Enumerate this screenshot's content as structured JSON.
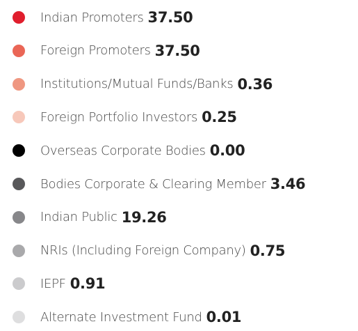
{
  "legend": {
    "items": [
      {
        "label": "Indian Promoters",
        "value": "37.50",
        "color": "#e01e2d"
      },
      {
        "label": "Foreign Promoters",
        "value": "37.50",
        "color": "#ea6656"
      },
      {
        "label": "Institutions/Mutual Funds/Banks",
        "value": "0.36",
        "color": "#ef9781"
      },
      {
        "label": "Foreign Portfolio Investors",
        "value": "0.25",
        "color": "#f7c8ba"
      },
      {
        "label": "Overseas Corporate Bodies",
        "value": "0.00",
        "color": "#000000"
      },
      {
        "label": "Bodies Corporate & Clearing Member",
        "value": "3.46",
        "color": "#58585a"
      },
      {
        "label": "Indian Public",
        "value": "19.26",
        "color": "#87878a"
      },
      {
        "label": "NRIs (Including Foreign Company)",
        "value": "0.75",
        "color": "#a9a9ab"
      },
      {
        "label": "IEPF",
        "value": "0.91",
        "color": "#cbcbcd"
      },
      {
        "label": "Alternate Investment Fund",
        "value": "0.01",
        "color": "#dededf"
      }
    ]
  }
}
